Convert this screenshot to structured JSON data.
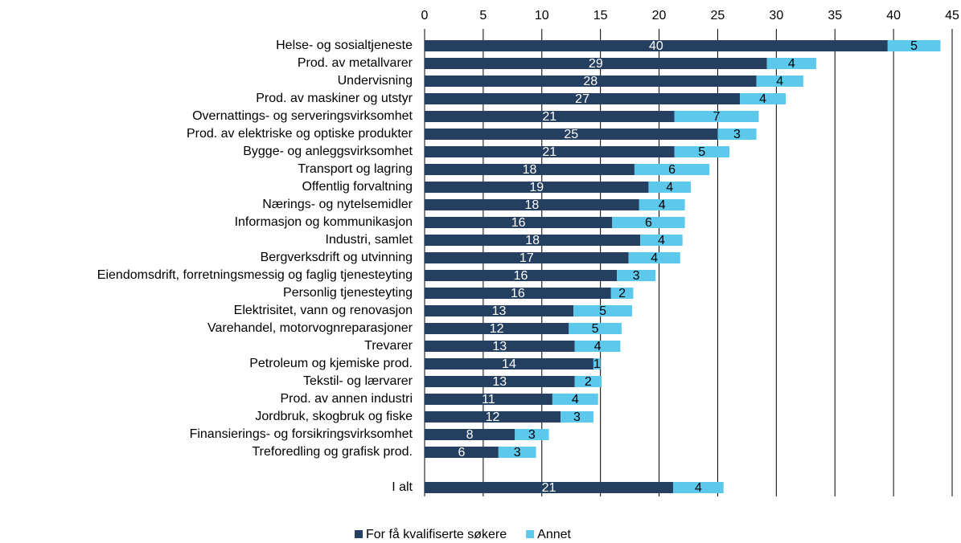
{
  "chart_data": {
    "type": "bar",
    "orientation": "horizontal",
    "stacked": true,
    "categories": [
      "Helse- og sosialtjeneste",
      "Prod. av metallvarer",
      "Undervisning",
      "Prod. av maskiner og utstyr",
      "Overnattings- og serveringsvirksomhet",
      "Prod. av elektriske og optiske produkter",
      "Bygge- og anleggsvirksomhet",
      "Transport og lagring",
      "Offentlig forvaltning",
      "Nærings- og nytelsemidler",
      "Informasjon og kommunikasjon",
      "Industri, samlet",
      "Bergverksdrift og utvinning",
      "Eiendomsdrift, forretningsmessig og faglig tjenesteyting",
      "Personlig tjenesteyting",
      "Elektrisitet, vann og renovasjon",
      "Varehandel, motorvognreparasjoner",
      "Trevarer",
      "Petroleum og kjemiske prod.",
      "Tekstil- og lærvarer",
      "Prod. av annen industri",
      "Jordbruk, skogbruk og fiske",
      "Finansierings- og forsikringsvirksomhet",
      "Treforedling og grafisk prod.",
      null,
      "I alt"
    ],
    "series": [
      {
        "name": "For få kvalifiserte søkere",
        "color": "#243f60",
        "values": [
          39.5,
          29.2,
          28.3,
          26.9,
          21.3,
          25.0,
          21.3,
          17.9,
          19.1,
          18.3,
          16.0,
          18.4,
          17.4,
          16.4,
          15.9,
          12.7,
          12.3,
          12.8,
          14.4,
          12.8,
          10.9,
          11.6,
          7.7,
          6.3,
          null,
          21.2
        ],
        "value_labels": [
          "40",
          "29",
          "28",
          "27",
          "21",
          "25",
          "21",
          "18",
          "19",
          "18",
          "16",
          "18",
          "17",
          "16",
          "16",
          "13",
          "12",
          "13",
          "14",
          "13",
          "11",
          "12",
          "8",
          "6",
          null,
          "21"
        ]
      },
      {
        "name": "Annet",
        "color": "#5bc8ec",
        "values": [
          4.5,
          4.2,
          4.0,
          3.9,
          7.2,
          3.3,
          4.7,
          6.4,
          3.6,
          3.9,
          6.2,
          3.6,
          4.4,
          3.3,
          1.9,
          5.0,
          4.5,
          3.9,
          0.6,
          2.3,
          3.9,
          2.8,
          2.9,
          3.2,
          null,
          4.3
        ],
        "value_labels": [
          "5",
          "4",
          "4",
          "4",
          "7",
          "3",
          "5",
          "6",
          "4",
          "4",
          "6",
          "4",
          "4",
          "3",
          "2",
          "5",
          "5",
          "4",
          "1",
          "2",
          "4",
          "3",
          "3",
          "3",
          null,
          "4"
        ]
      }
    ],
    "xlim": [
      0,
      45
    ],
    "xticks": [
      0,
      5,
      10,
      15,
      20,
      25,
      30,
      35,
      40,
      45
    ],
    "grid": true,
    "legend": "bottom"
  }
}
